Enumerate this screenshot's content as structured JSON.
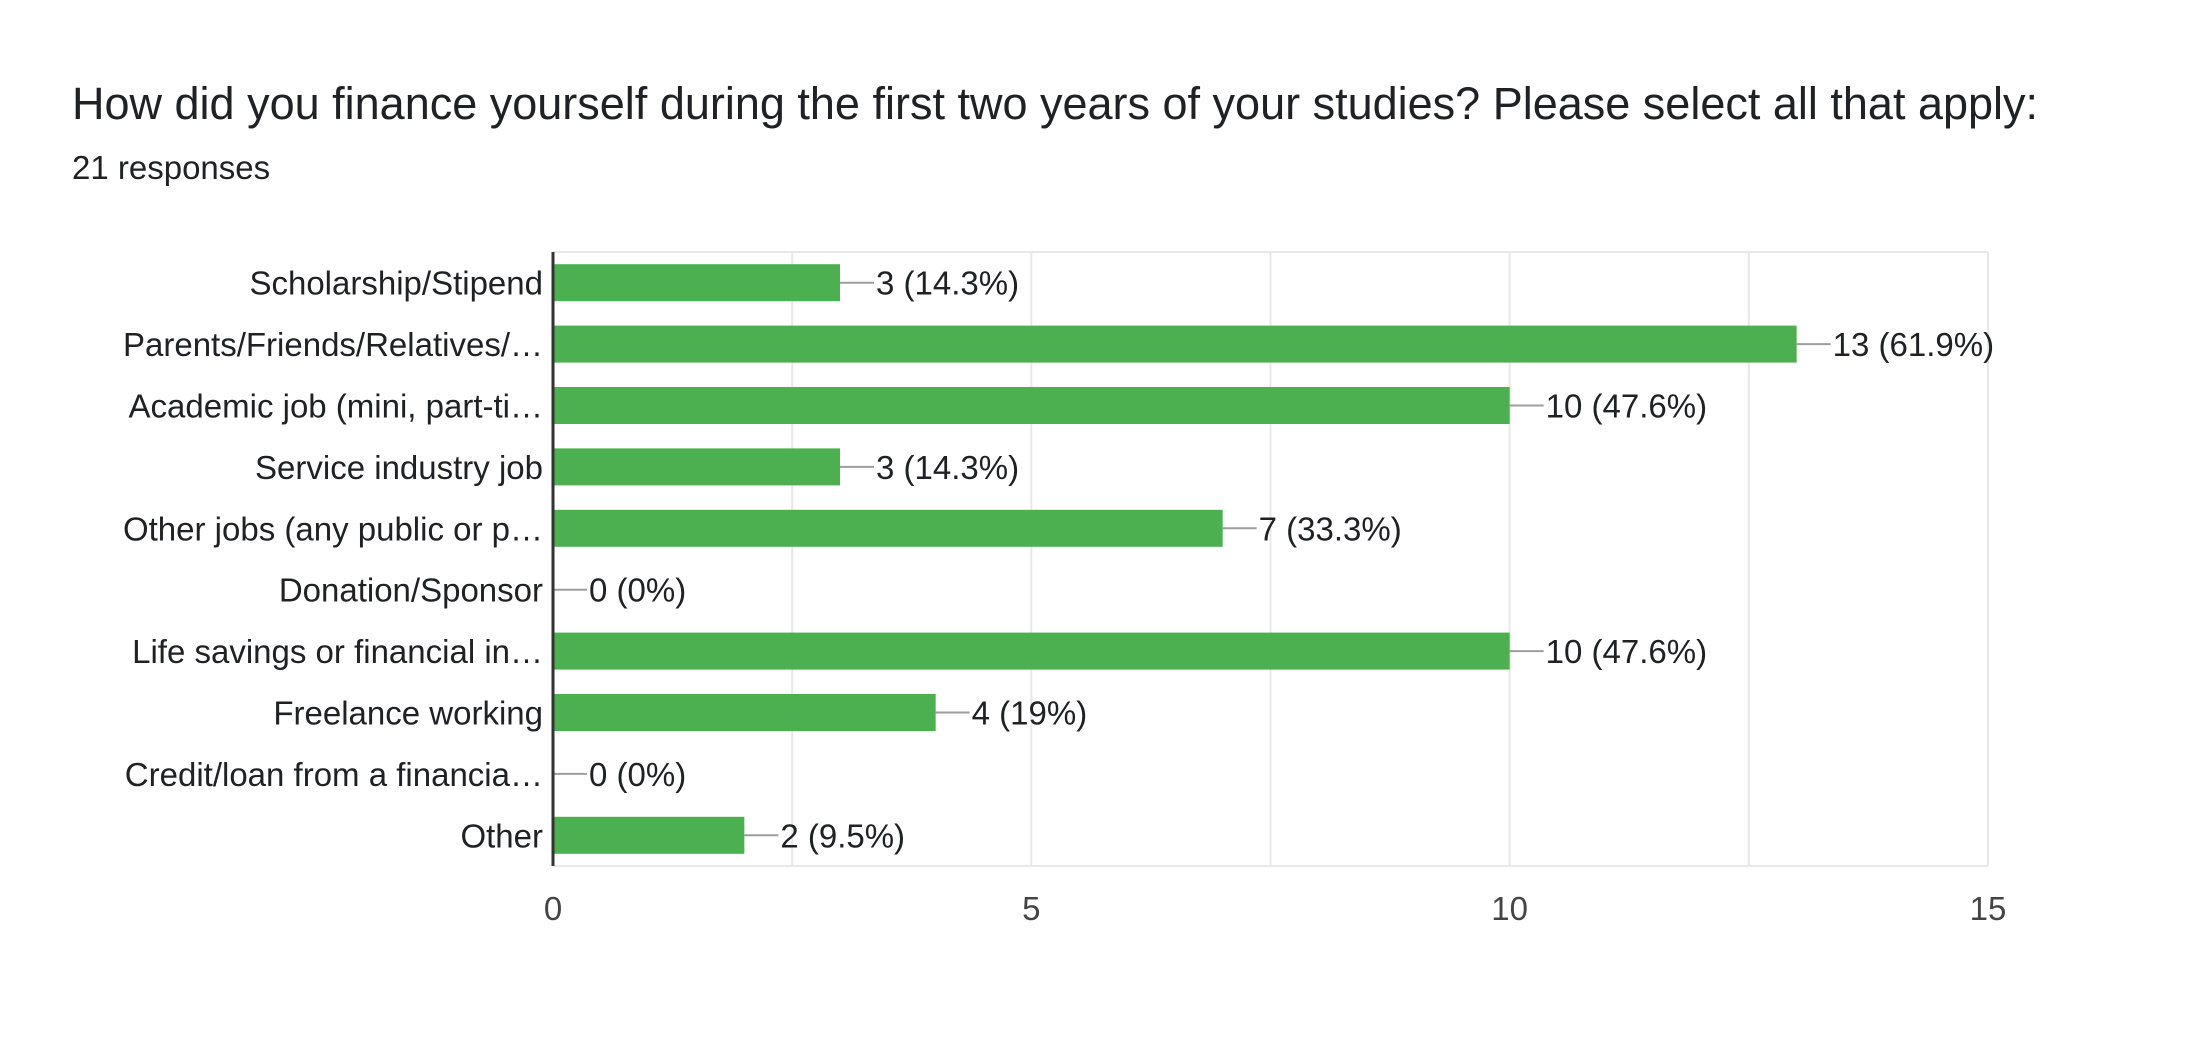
{
  "header": {
    "title": "How did you finance yourself during the first two years of your studies? Please select all that apply:",
    "responses": "21 responses"
  },
  "colors": {
    "bar": "#4caf50",
    "grid": "#e8e8e8",
    "axis": "#333333",
    "leader": "#9e9e9e"
  },
  "chart_data": {
    "type": "bar",
    "orientation": "horizontal",
    "title": "How did you finance yourself during the first two years of your studies? Please select all that apply:",
    "categories": [
      "Scholarship/Stipend",
      "Parents/Friends/Relatives/…",
      "Academic job (mini, part-ti…",
      "Service industry job",
      "Other jobs (any public or p…",
      "Donation/Sponsor",
      "Life savings or financial in…",
      "Freelance working",
      "Credit/loan from a financia…",
      "Other"
    ],
    "values": [
      3,
      13,
      10,
      3,
      7,
      0,
      10,
      4,
      0,
      2
    ],
    "data_labels": [
      "3 (14.3%)",
      "13 (61.9%)",
      "10 (47.6%)",
      "3 (14.3%)",
      "7 (33.3%)",
      "0 (0%)",
      "10 (47.6%)",
      "4 (19%)",
      "0 (0%)",
      "2 (9.5%)"
    ],
    "xlim": [
      0,
      15
    ],
    "xticks": [
      0,
      5,
      10,
      15
    ],
    "grid": true
  }
}
